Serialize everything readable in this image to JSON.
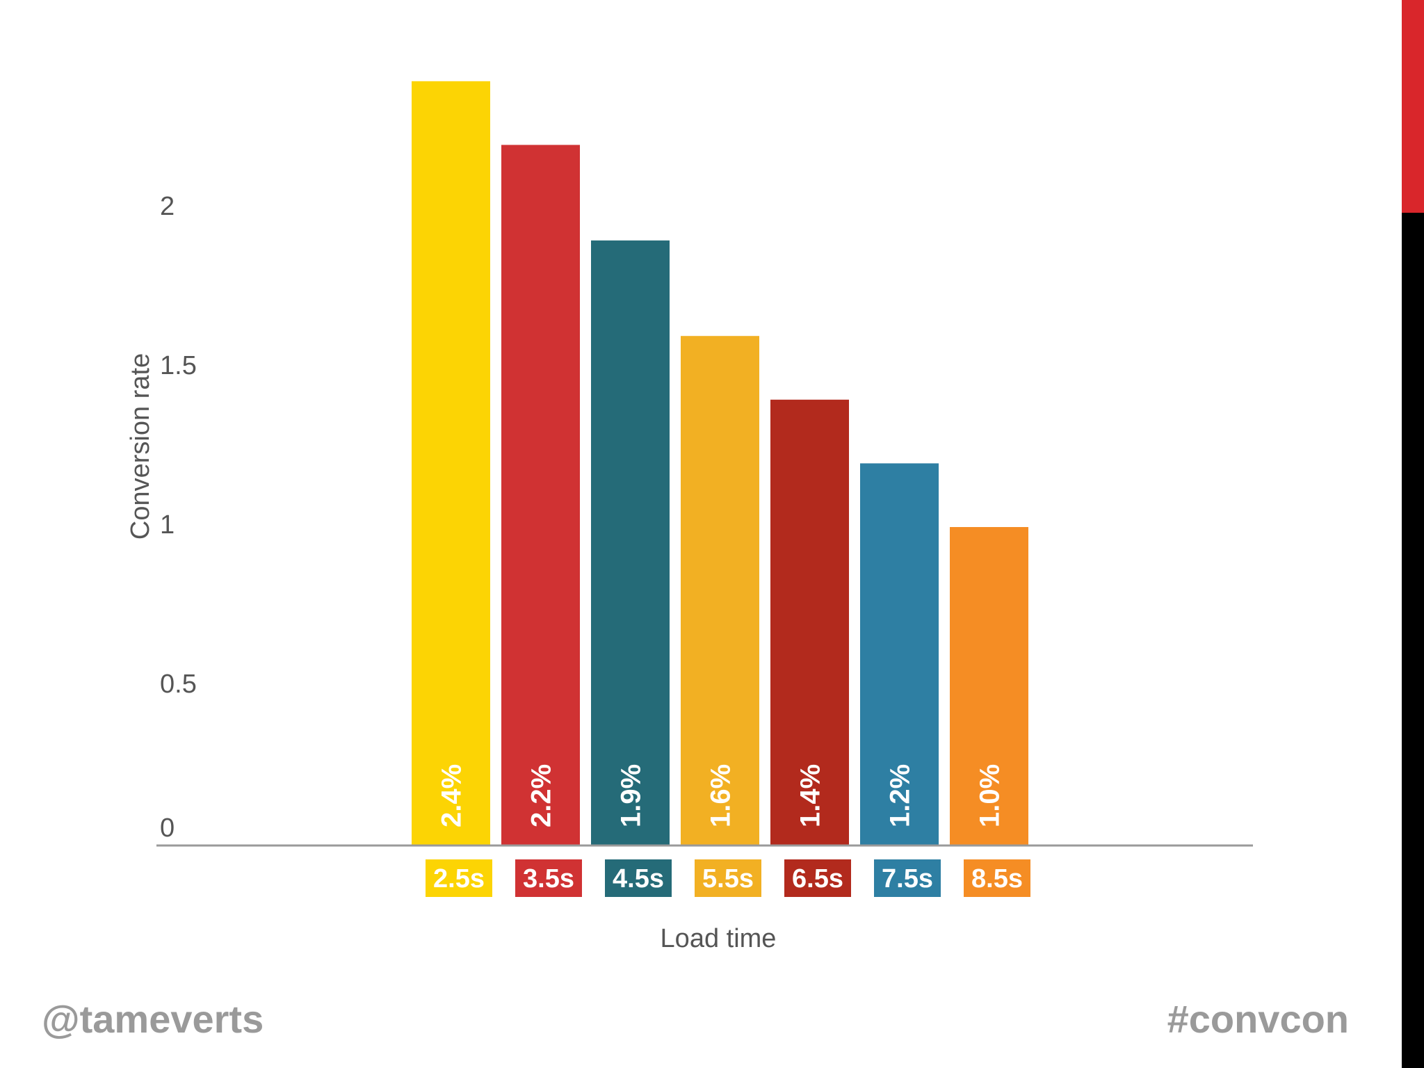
{
  "chart_data": {
    "type": "bar",
    "categories": [
      "2.5s",
      "3.5s",
      "4.5s",
      "5.5s",
      "6.5s",
      "7.5s",
      "8.5s"
    ],
    "values": [
      2.4,
      2.2,
      1.9,
      1.6,
      1.4,
      1.2,
      1.0
    ],
    "data_labels": [
      "2.4%",
      "2.2%",
      "1.9%",
      "1.6%",
      "1.4%",
      "1.2%",
      "1.0%"
    ],
    "colors": [
      "#fcd404",
      "#d03233",
      "#256b78",
      "#f2b023",
      "#b22a1d",
      "#2e7fa3",
      "#f58d24"
    ],
    "title": "",
    "xlabel": "Load time",
    "ylabel": "Conversion rate",
    "yticks": [
      "0",
      "0.5",
      "1",
      "1.5",
      "2"
    ],
    "ytick_values": [
      0,
      0.5,
      1,
      1.5,
      2
    ],
    "ylim": [
      0,
      2.4
    ],
    "grid": false,
    "legend": "none"
  },
  "footer": {
    "left": "@tameverts",
    "right": "#convcon"
  },
  "accent_colors": {
    "top": "#d9262b",
    "bottom": "#000000"
  }
}
